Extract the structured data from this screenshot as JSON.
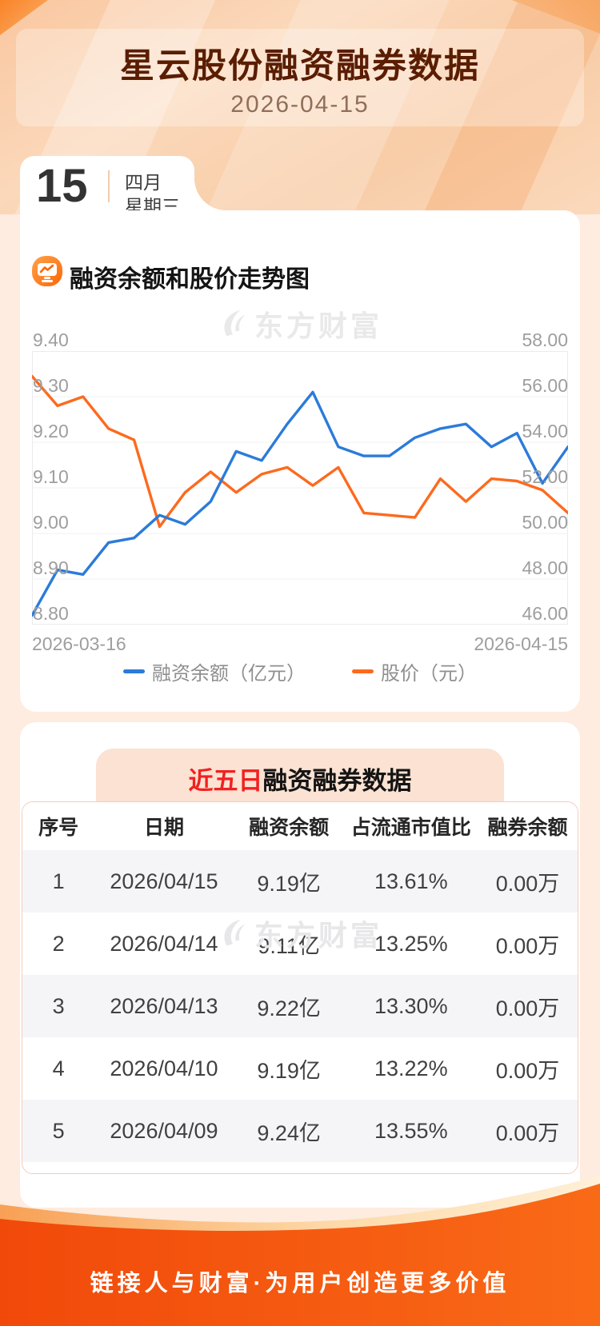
{
  "header": {
    "title": "星云股份融资融券数据",
    "date": "2026-04-15"
  },
  "calendar": {
    "day": "15",
    "month": "四月",
    "weekday": "星期三"
  },
  "chart_section": {
    "icon": "chart-monitor-icon",
    "title": "融资余额和股价走势图"
  },
  "watermark": {
    "icon": "eastmoney-swoosh-icon",
    "text": "东方财富"
  },
  "chart_data": {
    "type": "line",
    "title": "融资余额和股价走势图",
    "x_start_label": "2026-03-16",
    "x_end_label": "2026-04-15",
    "grid": true,
    "legend_position": "bottom",
    "left_axis": {
      "min": 8.8,
      "max": 9.4,
      "ticks": [
        "9.40",
        "9.30",
        "9.20",
        "9.10",
        "9.00",
        "8.90",
        "8.80"
      ]
    },
    "right_axis": {
      "min": 46.0,
      "max": 58.0,
      "ticks": [
        "58.00",
        "56.00",
        "54.00",
        "52.00",
        "50.00",
        "48.00",
        "46.00"
      ]
    },
    "series": [
      {
        "name": "融资余额（亿元）",
        "axis": "left",
        "color": "#2b7bd9",
        "values": [
          8.82,
          8.92,
          8.91,
          8.98,
          8.99,
          9.04,
          9.02,
          9.07,
          9.18,
          9.16,
          9.24,
          9.31,
          9.19,
          9.17,
          9.17,
          9.21,
          9.23,
          9.24,
          9.19,
          9.22,
          9.11,
          9.19
        ]
      },
      {
        "name": "股价（元）",
        "axis": "right",
        "color": "#fd6a1e",
        "values": [
          56.9,
          55.6,
          56.0,
          54.6,
          54.1,
          50.3,
          51.8,
          52.7,
          51.8,
          52.6,
          52.9,
          52.1,
          52.9,
          50.9,
          50.8,
          50.7,
          52.4,
          51.4,
          52.4,
          52.3,
          51.9,
          50.9
        ]
      }
    ]
  },
  "table_section": {
    "title_highlight": "近五日",
    "title_rest": "融资融券数据",
    "columns": [
      "序号",
      "日期",
      "融资余额",
      "占流通市值比",
      "融券余额"
    ],
    "rows": [
      [
        "1",
        "2026/04/15",
        "9.19亿",
        "13.61%",
        "0.00万"
      ],
      [
        "2",
        "2026/04/14",
        "9.11亿",
        "13.25%",
        "0.00万"
      ],
      [
        "3",
        "2026/04/13",
        "9.22亿",
        "13.30%",
        "0.00万"
      ],
      [
        "4",
        "2026/04/10",
        "9.19亿",
        "13.22%",
        "0.00万"
      ],
      [
        "5",
        "2026/04/09",
        "9.24亿",
        "13.55%",
        "0.00万"
      ]
    ]
  },
  "footer": {
    "slogan": "链接人与财富·为用户创造更多价值"
  },
  "colors": {
    "accent_orange": "#f25011",
    "line_blue": "#2b7bd9",
    "line_orange": "#fd6a1e",
    "highlight_red": "#f22020",
    "page_bg": "#fdecdf"
  }
}
